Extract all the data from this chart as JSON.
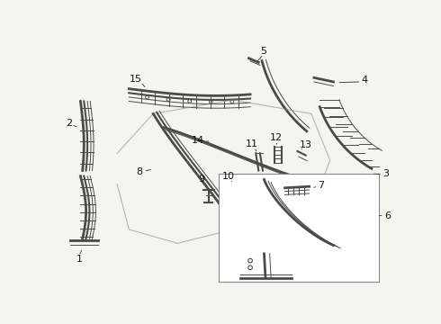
{
  "bg_color": "#f5f5f0",
  "line_color": "#4a4a4a",
  "lw_main": 1.5,
  "lw_thin": 0.7,
  "lw_thick": 2.0,
  "font_size": 8.0
}
